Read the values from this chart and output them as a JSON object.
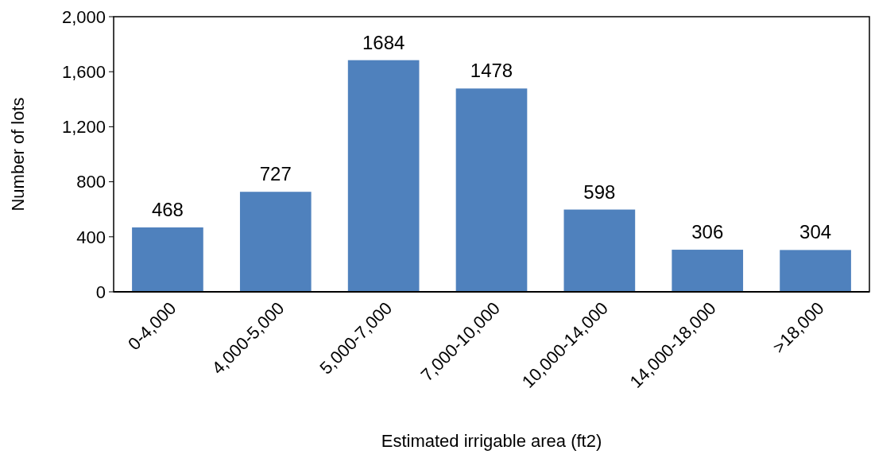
{
  "chart_data": {
    "type": "bar",
    "xlabel": "Estimated irrigable area (ft2)",
    "ylabel": "Number of lots",
    "categories": [
      "0-4,000",
      "4,000-5,000",
      "5,000-7,000",
      "7,000-10,000",
      "10,000-14,000",
      "14,000-18,000",
      ">18,000"
    ],
    "values": [
      468,
      727,
      1684,
      1478,
      598,
      306,
      304
    ],
    "color": "#4f81bd",
    "ylim": [
      0,
      2000
    ],
    "yticks": [
      0,
      400,
      800,
      {
        "value": 1200,
        "label": "1,200"
      },
      {
        "value": 1600,
        "label": "1,600"
      },
      {
        "value": 2000,
        "label": "2,000"
      }
    ],
    "data_labels": true,
    "grid": false
  }
}
